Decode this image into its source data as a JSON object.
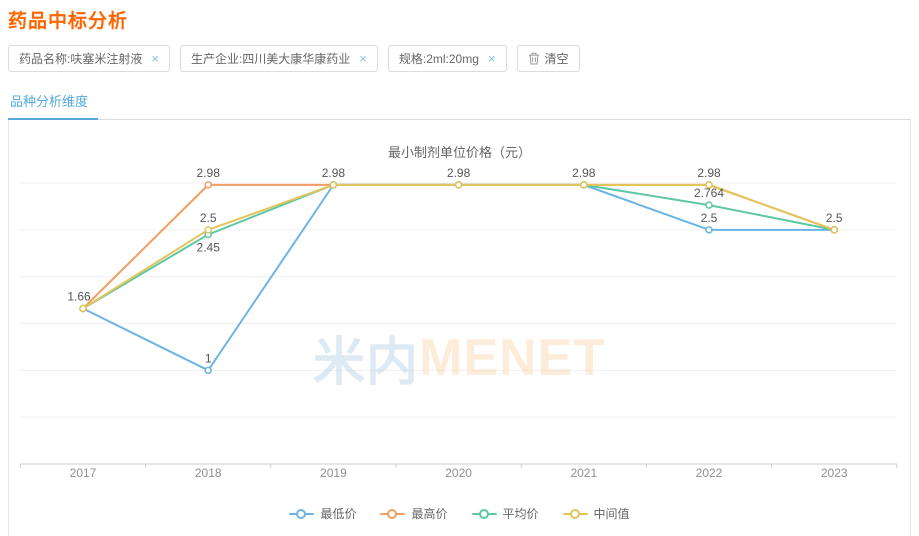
{
  "page": {
    "title": "药品中标分析"
  },
  "filters": {
    "tags": [
      {
        "label": "药品名称:呋塞米注射液"
      },
      {
        "label": "生产企业:四川美大康华康药业"
      },
      {
        "label": "规格:2ml:20mg"
      }
    ],
    "close_icon": "×",
    "clear_label": "清空"
  },
  "tabs": [
    {
      "label": "品种分析维度",
      "active": true
    }
  ],
  "watermark": {
    "text_cn": "米内",
    "text_en": "MENET"
  },
  "chart_data": {
    "type": "line",
    "title": "最小制剂单位价格（元）",
    "xlabel": "",
    "ylabel": "",
    "categories": [
      "2017",
      "2018",
      "2019",
      "2020",
      "2021",
      "2022",
      "2023"
    ],
    "series": [
      {
        "name": "最低价",
        "color": "#6bb5e6",
        "values": [
          1.66,
          1,
          2.98,
          2.98,
          2.98,
          2.5,
          2.5
        ]
      },
      {
        "name": "最高价",
        "color": "#f09e63",
        "values": [
          1.66,
          2.98,
          2.98,
          2.98,
          2.98,
          2.98,
          2.5
        ]
      },
      {
        "name": "平均价",
        "color": "#5ec8a4",
        "values": [
          1.66,
          2.45,
          2.98,
          2.98,
          2.98,
          2.764,
          2.5
        ]
      },
      {
        "name": "中间值",
        "color": "#e3c45c",
        "values": [
          1.66,
          2.5,
          2.98,
          2.98,
          2.98,
          2.98,
          2.5
        ]
      }
    ],
    "point_labels": [
      {
        "x": 0,
        "value": 1.66,
        "text": "1.66",
        "placement": "top",
        "dx": -4
      },
      {
        "x": 1,
        "value": 2.98,
        "text": "2.98",
        "placement": "top"
      },
      {
        "x": 1,
        "value": 2.5,
        "text": "2.5",
        "placement": "top"
      },
      {
        "x": 1,
        "value": 2.45,
        "text": "2.45",
        "placement": "bottom"
      },
      {
        "x": 1,
        "value": 1,
        "text": "1",
        "placement": "top"
      },
      {
        "x": 2,
        "value": 2.98,
        "text": "2.98",
        "placement": "top"
      },
      {
        "x": 3,
        "value": 2.98,
        "text": "2.98",
        "placement": "top"
      },
      {
        "x": 4,
        "value": 2.98,
        "text": "2.98",
        "placement": "top"
      },
      {
        "x": 5,
        "value": 2.98,
        "text": "2.98",
        "placement": "top"
      },
      {
        "x": 5,
        "value": 2.764,
        "text": "2.764",
        "placement": "top"
      },
      {
        "x": 5,
        "value": 2.5,
        "text": "2.5",
        "placement": "top"
      },
      {
        "x": 6,
        "value": 2.5,
        "text": "2.5",
        "placement": "top"
      }
    ],
    "ylim": [
      0,
      3
    ],
    "grid_step": 0.5,
    "grid": true,
    "legend_position": "bottom",
    "colors": {
      "grid_line": "#f1f1f4",
      "axis_line": "#cccccc",
      "tick_label": "#8f8f8f",
      "point_label": "#555555"
    }
  }
}
